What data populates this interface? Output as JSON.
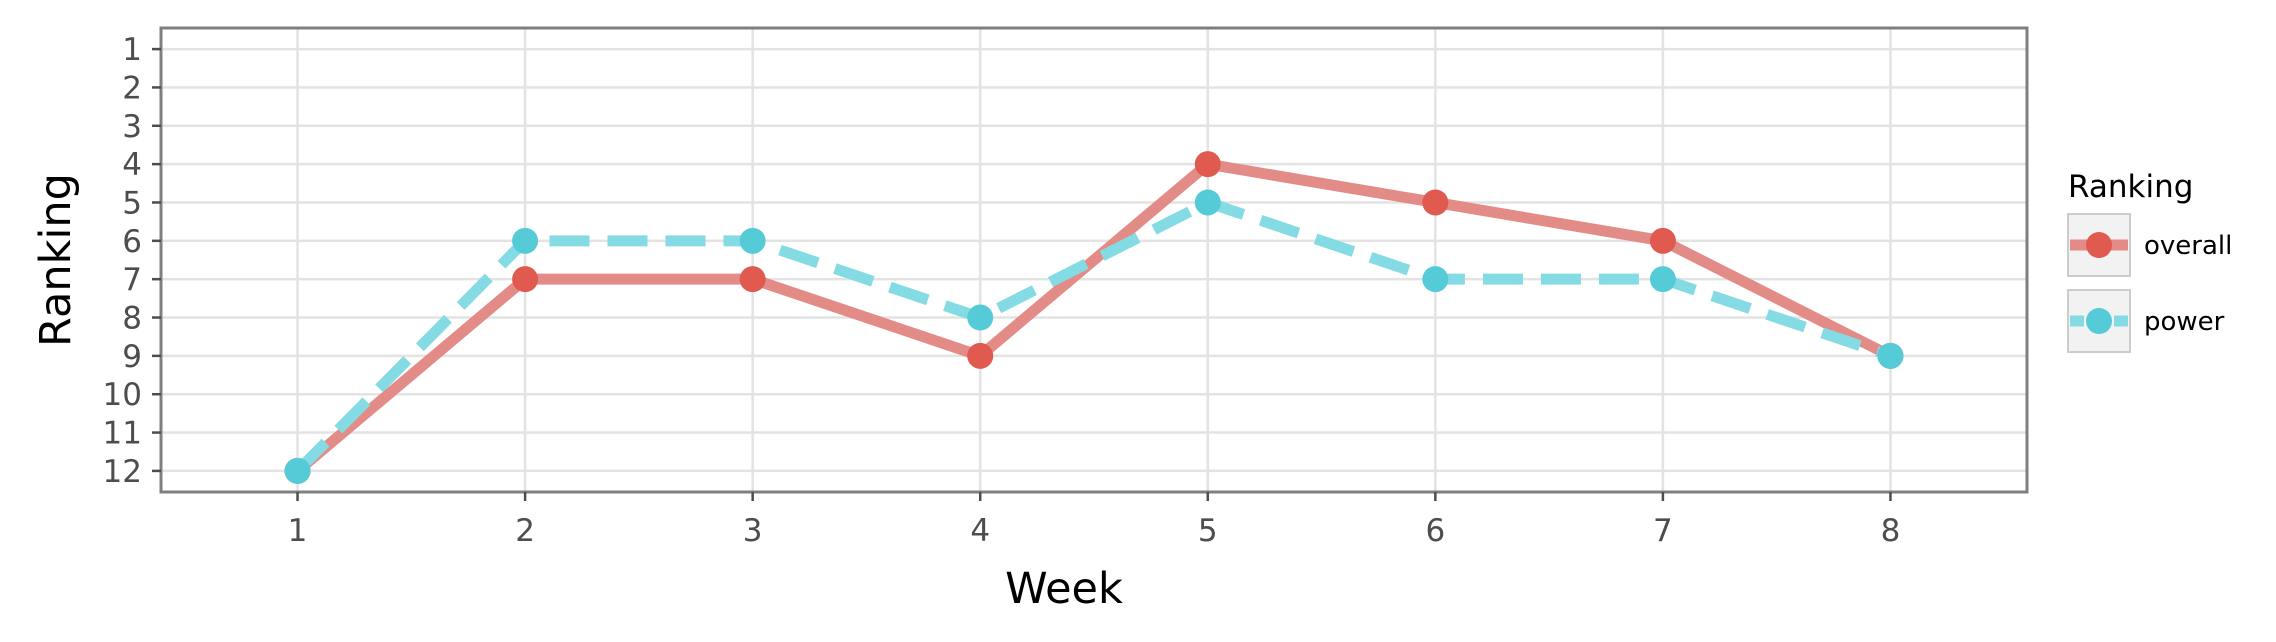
{
  "chart_data": {
    "type": "line",
    "xlabel": "Week",
    "ylabel": "Ranking",
    "x": [
      1,
      2,
      3,
      4,
      5,
      6,
      7,
      8
    ],
    "xlim": [
      0.4,
      8.6
    ],
    "ylim": [
      12.55,
      0.45
    ],
    "y_reversed": true,
    "x_ticks": [
      1,
      2,
      3,
      4,
      5,
      6,
      7,
      8
    ],
    "y_ticks": [
      1,
      2,
      3,
      4,
      5,
      6,
      7,
      8,
      9,
      10,
      11,
      12
    ],
    "grid": true,
    "legend": {
      "title": "Ranking",
      "position": "right"
    },
    "series": [
      {
        "name": "overall",
        "values": [
          12,
          7,
          7,
          9,
          4,
          5,
          6,
          9
        ],
        "color": "#e05a4f",
        "line_color": "#e38b86",
        "style": "solid"
      },
      {
        "name": "power",
        "values": [
          12,
          6,
          6,
          8,
          5,
          7,
          7,
          9
        ],
        "color": "#56cbd8",
        "line_color": "#84dbe3",
        "style": "dashed"
      }
    ]
  }
}
